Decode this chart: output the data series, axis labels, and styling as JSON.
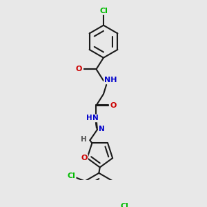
{
  "background_color": "#e8e8e8",
  "bond_color": "#1a1a1a",
  "atom_colors": {
    "Cl": "#00bb00",
    "O": "#cc0000",
    "N": "#0000cc",
    "H": "#555555",
    "C": "#1a1a1a"
  },
  "figsize": [
    3.0,
    3.0
  ],
  "dpi": 100
}
